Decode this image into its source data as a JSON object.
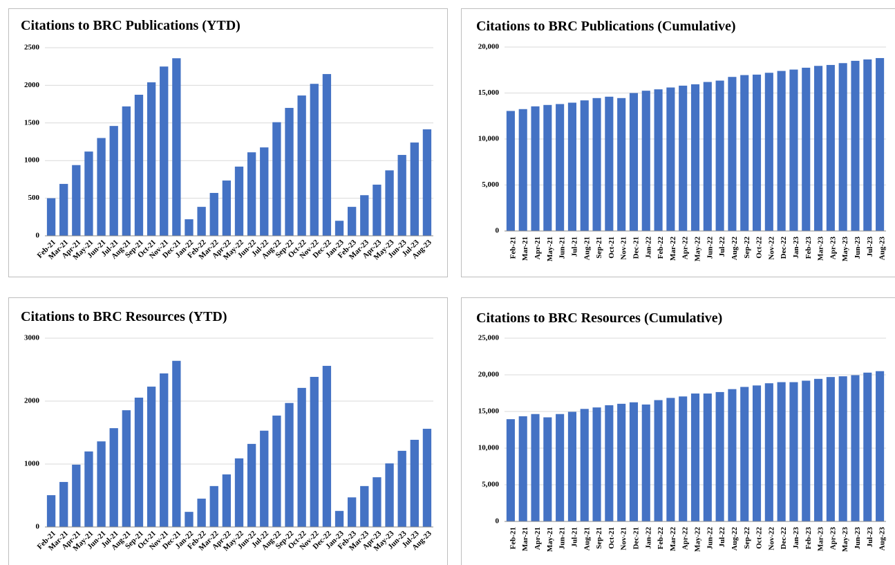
{
  "chart_data": [
    {
      "type": "bar",
      "title": "Citations to BRC Publications (YTD)",
      "color": "#4472c4",
      "grid": true,
      "categories": [
        "Feb-21",
        "Mar-21",
        "Apr-21",
        "May-21",
        "Jun-21",
        "Jul-21",
        "Aug-21",
        "Sep-21",
        "Oct-21",
        "Nov-21",
        "Dec-21",
        "Jan-22",
        "Feb-22",
        "Mar-22",
        "Apr-22",
        "May-22",
        "Jun-22",
        "Jul-22",
        "Aug-22",
        "Sep-22",
        "Oct-22",
        "Nov-22",
        "Dec-22",
        "Jan-23",
        "Feb-23",
        "Mar-23",
        "Apr-23",
        "May-23",
        "Jun-23",
        "Jul-23",
        "Aug-23"
      ],
      "values": [
        500,
        690,
        940,
        1120,
        1300,
        1460,
        1720,
        1875,
        2040,
        2250,
        2360,
        220,
        385,
        570,
        735,
        920,
        1110,
        1175,
        1510,
        1700,
        1865,
        2020,
        2150,
        200,
        385,
        540,
        680,
        870,
        1075,
        1240,
        1415
      ],
      "ylim": [
        0,
        2500
      ],
      "yticks": [
        0,
        500,
        1000,
        1500,
        2000,
        2500
      ]
    },
    {
      "type": "bar",
      "title": "Citations to BRC Publications (Cumulative)",
      "color": "#4472c4",
      "grid": true,
      "categories": [
        "Feb-21",
        "Mar-21",
        "Apr-21",
        "May-21",
        "Jun-21",
        "Jul-21",
        "Aug-21",
        "Sep-21",
        "Oct-21",
        "Nov-21",
        "Dec-21",
        "Jan-22",
        "Feb-22",
        "Mar-22",
        "Apr-22",
        "May-22",
        "Jun-22",
        "Jul-22",
        "Aug-22",
        "Sep-22",
        "Oct-22",
        "Nov-22",
        "Dec-22",
        "Jan-23",
        "Feb-23",
        "Mar-23",
        "Apr-23",
        "May-23",
        "Jun-23",
        "Jul-23",
        "Aug-23"
      ],
      "values": [
        13050,
        13250,
        13550,
        13700,
        13800,
        13950,
        14200,
        14450,
        14600,
        14450,
        15000,
        15250,
        15400,
        15600,
        15800,
        15950,
        16200,
        16350,
        16750,
        16950,
        17000,
        17200,
        17400,
        17550,
        17750,
        17950,
        18050,
        18250,
        18500,
        18650,
        18800
      ],
      "ylim": [
        0,
        20000
      ],
      "yticks": [
        0,
        {
          "value": 5000,
          "label": "5,000"
        },
        {
          "value": 10000,
          "label": "10,000"
        },
        {
          "value": 15000,
          "label": "15,000"
        },
        {
          "value": 20000,
          "label": "20,000"
        }
      ]
    },
    {
      "type": "bar",
      "title": "Citations to BRC Resources (YTD)",
      "color": "#4472c4",
      "grid": true,
      "categories": [
        "Feb-21",
        "Mar-21",
        "Apr-21",
        "May-21",
        "Jun-21",
        "Jul-21",
        "Aug-21",
        "Sep-21",
        "Oct-21",
        "Nov-21",
        "Dec-21",
        "Jan-22",
        "Feb-22",
        "Mar-22",
        "Apr-22",
        "May-22",
        "Jun-22",
        "Jul-22",
        "Aug-22",
        "Sep-22",
        "Oct-22",
        "Nov-22",
        "Dec-22",
        "Jan-23",
        "Feb-23",
        "Mar-23",
        "Apr-23",
        "May-23",
        "Jun-23",
        "Jul-23",
        "Aug-23"
      ],
      "values": [
        505,
        715,
        990,
        1200,
        1360,
        1570,
        1855,
        2055,
        2230,
        2440,
        2640,
        240,
        450,
        650,
        835,
        1090,
        1320,
        1530,
        1770,
        1970,
        2210,
        2385,
        2560,
        255,
        470,
        650,
        790,
        1010,
        1210,
        1385,
        1560
      ],
      "ylim": [
        0,
        3000
      ],
      "yticks": [
        0,
        1000,
        2000,
        3000
      ]
    },
    {
      "type": "bar",
      "title": "Citations to BRC Resources (Cumulative)",
      "color": "#4472c4",
      "grid": true,
      "categories": [
        "Feb-21",
        "Mar-21",
        "Apr-21",
        "May-21",
        "Jun-21",
        "Jul-21",
        "Aug-21",
        "Sep-21",
        "Oct-21",
        "Nov-21",
        "Dec-21",
        "Jan-22",
        "Feb-22",
        "Mar-22",
        "Apr-22",
        "May-22",
        "Jun-22",
        "Jul-22",
        "Aug-22",
        "Sep-22",
        "Oct-22",
        "Nov-22",
        "Dec-22",
        "Jan-23",
        "Feb-23",
        "Mar-23",
        "Apr-23",
        "May-23",
        "Jun-23",
        "Jul-23",
        "Aug-23"
      ],
      "values": [
        13950,
        14350,
        14650,
        14200,
        14650,
        14950,
        15350,
        15550,
        15850,
        16050,
        16250,
        15950,
        16550,
        16850,
        17050,
        17450,
        17450,
        17650,
        18050,
        18350,
        18550,
        18850,
        19000,
        19000,
        19200,
        19450,
        19700,
        19800,
        19950,
        20300,
        20500
      ],
      "ylim": [
        0,
        25000
      ],
      "yticks": [
        0,
        {
          "value": 5000,
          "label": "5,000"
        },
        {
          "value": 10000,
          "label": "10,000"
        },
        {
          "value": 15000,
          "label": "15,000"
        },
        {
          "value": 20000,
          "label": "20,000"
        },
        {
          "value": 25000,
          "label": "25,000"
        }
      ]
    }
  ]
}
